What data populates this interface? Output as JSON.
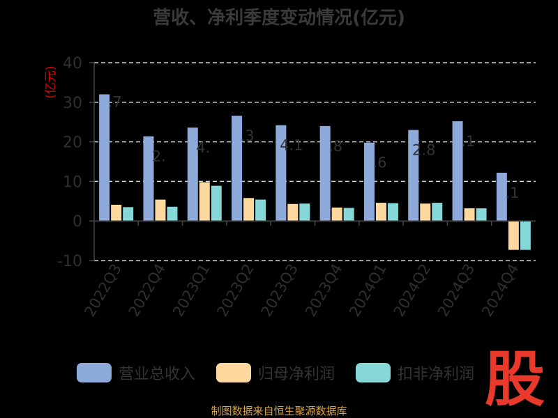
{
  "logo_text": "股",
  "source": "制图数据来自恒生聚源数据库",
  "chart_data": {
    "type": "bar",
    "title": "营收、净利季度变动情况(亿元)",
    "ylabel": "(亿元)",
    "xlabel": "",
    "ylim": [
      -10,
      40
    ],
    "yticks": [
      -10,
      0,
      10,
      20,
      30,
      40
    ],
    "grid": true,
    "legend_position": "bottom",
    "categories": [
      "2022Q3",
      "2022Q4",
      "2023Q1",
      "2023Q2",
      "2023Q3",
      "2023Q4",
      "2024Q1",
      "2024Q2",
      "2024Q3",
      "2024Q4"
    ],
    "series": [
      {
        "name": "营业总收入",
        "color": "#8eaadb",
        "values": [
          32.0,
          21.4,
          23.6,
          26.6,
          24.2,
          24.0,
          19.8,
          23.0,
          25.2,
          12.2
        ]
      },
      {
        "name": "归母净利润",
        "color": "#fdd9a0",
        "values": [
          4.1,
          5.4,
          9.8,
          5.8,
          4.3,
          3.4,
          4.6,
          4.4,
          3.2,
          -7.3
        ]
      },
      {
        "name": "扣非净利润",
        "color": "#86d8d8",
        "values": [
          3.5,
          3.6,
          8.9,
          5.4,
          4.4,
          3.3,
          4.5,
          4.6,
          3.2,
          -7.3
        ]
      }
    ],
    "data_labels": [
      ".7",
      "2.",
      "4.",
      ".3",
      "4.1",
      ".8",
      ".6",
      "2.8",
      ".1",
      ".1"
    ]
  }
}
